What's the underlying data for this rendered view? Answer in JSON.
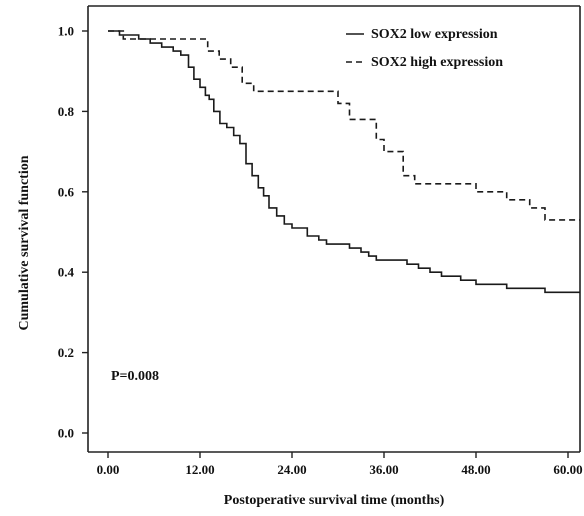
{
  "chart_data": {
    "type": "line",
    "subtype": "kaplan-meier-step",
    "title": "",
    "xlabel": "Postoperative survival time (months)",
    "ylabel": "Cumulative survival function",
    "xlim": [
      0,
      62
    ],
    "ylim": [
      0,
      1.05
    ],
    "xticks": [
      0,
      12,
      24,
      36,
      48,
      60
    ],
    "xtick_labels": [
      "0.00",
      "12.00",
      "24.00",
      "36.00",
      "48.00",
      "60.00"
    ],
    "yticks": [
      0,
      0.2,
      0.4,
      0.6,
      0.8,
      1.0
    ],
    "ytick_labels": [
      "0.0",
      "0.2",
      "0.4",
      "0.6",
      "0.8",
      "1.0"
    ],
    "grid": false,
    "legend_position": "top-right",
    "annotation": "P=0.008",
    "series": [
      {
        "name": "SOX2 low expression",
        "style": "solid",
        "x": [
          0,
          1.5,
          4,
          5.5,
          7,
          8.5,
          9.5,
          10.5,
          11.2,
          12,
          12.7,
          13.2,
          13.8,
          14.6,
          15.5,
          16.4,
          17.2,
          18,
          18.8,
          19.6,
          20.3,
          21,
          22,
          23,
          24,
          26,
          27.5,
          28.5,
          30,
          31.5,
          33,
          34,
          35,
          36,
          39,
          40.5,
          42,
          43.5,
          46,
          48,
          52,
          57,
          62
        ],
        "y": [
          1.0,
          0.99,
          0.98,
          0.97,
          0.96,
          0.95,
          0.94,
          0.91,
          0.88,
          0.86,
          0.84,
          0.83,
          0.8,
          0.77,
          0.76,
          0.74,
          0.72,
          0.67,
          0.64,
          0.61,
          0.59,
          0.56,
          0.54,
          0.52,
          0.51,
          0.49,
          0.48,
          0.47,
          0.47,
          0.46,
          0.45,
          0.44,
          0.43,
          0.43,
          0.42,
          0.41,
          0.4,
          0.39,
          0.38,
          0.37,
          0.36,
          0.35,
          0.35
        ]
      },
      {
        "name": "SOX2 high expression",
        "style": "dashed",
        "x": [
          0,
          2,
          4,
          6,
          9,
          12,
          13,
          14.5,
          16,
          17.5,
          19,
          22,
          24,
          29,
          30,
          31.5,
          34,
          35,
          36,
          38.5,
          40,
          46,
          48,
          52,
          55,
          57,
          62
        ],
        "y": [
          1.0,
          0.98,
          0.98,
          0.98,
          0.98,
          0.98,
          0.95,
          0.93,
          0.91,
          0.87,
          0.85,
          0.85,
          0.85,
          0.85,
          0.82,
          0.78,
          0.78,
          0.73,
          0.7,
          0.64,
          0.62,
          0.62,
          0.6,
          0.58,
          0.56,
          0.53,
          0.53
        ]
      }
    ]
  }
}
